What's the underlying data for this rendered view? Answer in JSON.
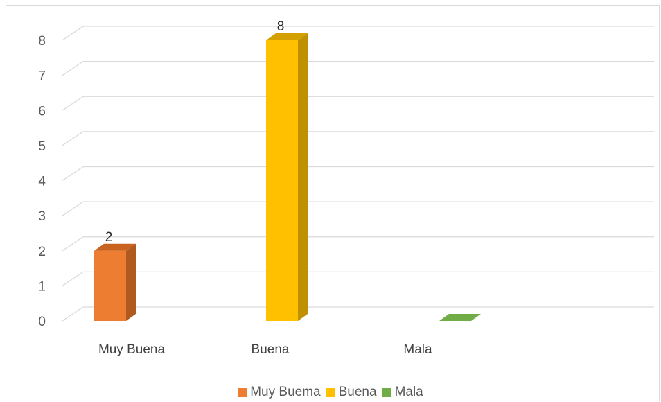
{
  "chart_data": {
    "type": "bar",
    "style": "3d-clustered-column",
    "categories": [
      "Muy Buena",
      "Buena",
      "Mala"
    ],
    "series": [
      {
        "name": "Muy Buema",
        "category": "Muy Buena",
        "value": 2,
        "color": "#ED7D31",
        "side_color": "#B05A1F",
        "top_color": "#C9621F"
      },
      {
        "name": "Buena",
        "category": "Buena",
        "value": 8,
        "color": "#FFC000",
        "side_color": "#BF9000",
        "top_color": "#D4A000"
      },
      {
        "name": "Mala",
        "category": "Mala",
        "value": 0,
        "color": "#70AD47",
        "side_color": "#4E7A31",
        "top_color": "#548235"
      }
    ],
    "data_labels": [
      "2",
      "8",
      ""
    ],
    "y_ticks": [
      "0",
      "1",
      "2",
      "3",
      "4",
      "5",
      "6",
      "7",
      "8"
    ],
    "ylim": [
      0,
      8
    ],
    "grid": true,
    "legend_position": "bottom"
  }
}
